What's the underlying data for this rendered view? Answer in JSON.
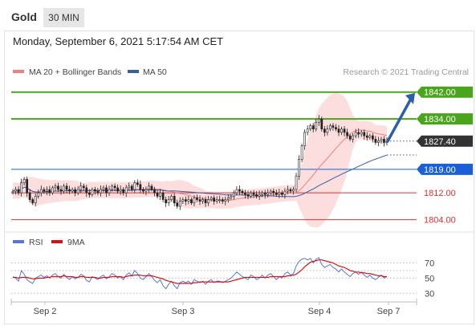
{
  "header": {
    "title": "Gold",
    "timeframe": "30 MIN"
  },
  "timestamp": "Monday, September 6, 2021 5:17:54 AM CET",
  "credit": "Research © 2021 Trading Central",
  "colors": {
    "bollinger": "#f08080",
    "ma50": "#3a5fa0",
    "support_resistance_green": "#4aa51c",
    "pivot_blue": "#1a5fd8",
    "support_red": "#e03030",
    "current_price_box": "#333333",
    "arrow": "#2b5fa8",
    "rsi": "#5577dd",
    "rsi_9ma": "#dd1111",
    "band_fill": "#fbd3d3"
  },
  "chart_data": [
    {
      "type": "candlestick",
      "title": "",
      "legend": [
        {
          "name": "MA 20 + Bollinger Bands",
          "color": "#f08080"
        },
        {
          "name": "MA 50",
          "color": "#3a5fa0"
        }
      ],
      "x_tick_labels": [
        "Sep 2",
        "Sep 3",
        "Sep 4",
        "Sep 7"
      ],
      "ylim": [
        1802,
        1846
      ],
      "levels": [
        {
          "value": 1842.0,
          "label": "1842.00",
          "kind": "resistance",
          "style": "green"
        },
        {
          "value": 1834.0,
          "label": "1834.00",
          "kind": "resistance",
          "style": "green"
        },
        {
          "value": 1827.4,
          "label": "1827.40",
          "kind": "last-price",
          "style": "dark"
        },
        {
          "value": 1819.0,
          "label": "1819.00",
          "kind": "pivot",
          "style": "blue"
        },
        {
          "value": 1812.0,
          "label": "1812.00",
          "kind": "support",
          "style": "red"
        },
        {
          "value": 1804.0,
          "label": "1804.00",
          "kind": "support",
          "style": "red"
        }
      ],
      "close": [
        1812.5,
        1813,
        1812,
        1815,
        1816,
        1812,
        1810,
        1809,
        1811,
        1812,
        1813,
        1812.5,
        1813,
        1812,
        1813.5,
        1814,
        1813,
        1812.5,
        1814,
        1813,
        1812.5,
        1813,
        1812,
        1813,
        1814,
        1813.5,
        1812,
        1811.5,
        1813,
        1812.5,
        1812,
        1813,
        1813.5,
        1812,
        1813,
        1814,
        1813.5,
        1812.5,
        1813,
        1812,
        1813.5,
        1814,
        1813,
        1815,
        1814.5,
        1813,
        1812.5,
        1813,
        1814,
        1813,
        1812,
        1811,
        1812,
        1810,
        1809,
        1810,
        1811,
        1809,
        1808,
        1809.5,
        1810,
        1809.5,
        1810,
        1809,
        1810.5,
        1810,
        1809.5,
        1810,
        1809,
        1810,
        1810.5,
        1809.5,
        1810,
        1810,
        1809.5,
        1810,
        1810.5,
        1811,
        1812,
        1813,
        1812.5,
        1812,
        1811.5,
        1811,
        1812,
        1811.5,
        1811,
        1811.5,
        1812,
        1811.5,
        1812,
        1812.5,
        1812,
        1811.5,
        1812,
        1811.5,
        1812.5,
        1813,
        1812.5,
        1813,
        1817,
        1822,
        1826,
        1830,
        1831,
        1832,
        1831,
        1833,
        1834,
        1831,
        1830,
        1831,
        1832,
        1831.5,
        1831,
        1830,
        1831,
        1830,
        1829,
        1828,
        1829,
        1830,
        1829.5,
        1830,
        1829,
        1828.5,
        1829,
        1828,
        1827,
        1827.5,
        1828,
        1827,
        1827.4
      ]
    },
    {
      "type": "line",
      "title": "",
      "legend": [
        {
          "name": "RSI",
          "color": "#5577dd"
        },
        {
          "name": "9MA",
          "color": "#dd1111"
        }
      ],
      "y_tick_labels": [
        "70",
        "50",
        "30"
      ],
      "ylim": [
        25,
        80
      ],
      "series": [
        {
          "name": "RSI",
          "values": [
            52,
            50,
            46,
            60,
            55,
            48,
            45,
            43,
            50,
            52,
            54,
            51,
            53,
            50,
            54,
            56,
            52,
            50,
            55,
            51,
            48,
            52,
            49,
            51,
            55,
            53,
            47,
            45,
            52,
            50,
            48,
            52,
            54,
            49,
            52,
            56,
            54,
            50,
            52,
            48,
            54,
            57,
            53,
            60,
            56,
            50,
            48,
            52,
            56,
            52,
            47,
            44,
            48,
            40,
            36,
            42,
            46,
            40,
            36,
            44,
            46,
            44,
            46,
            42,
            48,
            46,
            44,
            46,
            42,
            46,
            48,
            44,
            46,
            46,
            44,
            46,
            48,
            50,
            54,
            58,
            55,
            52,
            50,
            48,
            54,
            52,
            48,
            50,
            54,
            50,
            54,
            56,
            52,
            48,
            52,
            50,
            56,
            58,
            54,
            56,
            66,
            72,
            75,
            76,
            74,
            76,
            70,
            75,
            77,
            68,
            64,
            66,
            68,
            64,
            62,
            58,
            62,
            58,
            55,
            52,
            56,
            58,
            55,
            58,
            54,
            51,
            54,
            50,
            48,
            51,
            54,
            50,
            52
          ]
        },
        {
          "name": "9MA",
          "values": [
            51,
            51,
            50,
            51,
            51,
            51,
            50,
            49,
            49,
            50,
            50,
            50,
            51,
            51,
            52,
            52,
            52,
            52,
            53,
            52,
            52,
            52,
            51,
            51,
            52,
            52,
            51,
            51,
            51,
            51,
            50,
            50,
            51,
            51,
            51,
            52,
            52,
            52,
            52,
            51,
            52,
            53,
            53,
            54,
            54,
            54,
            53,
            53,
            53,
            53,
            52,
            51,
            50,
            49,
            47,
            46,
            45,
            44,
            43,
            43,
            43,
            43,
            43,
            43,
            44,
            44,
            45,
            45,
            45,
            45,
            45,
            45,
            45,
            45,
            45,
            45,
            45,
            46,
            47,
            48,
            49,
            50,
            51,
            51,
            51,
            51,
            51,
            51,
            51,
            51,
            51,
            52,
            52,
            52,
            52,
            52,
            52,
            53,
            53,
            54,
            55,
            58,
            61,
            65,
            68,
            71,
            72,
            73,
            74,
            74,
            73,
            72,
            71,
            70,
            68,
            66,
            65,
            64,
            62,
            60,
            59,
            58,
            58,
            57,
            57,
            56,
            56,
            55,
            54,
            53,
            53,
            52,
            52
          ]
        }
      ]
    }
  ]
}
